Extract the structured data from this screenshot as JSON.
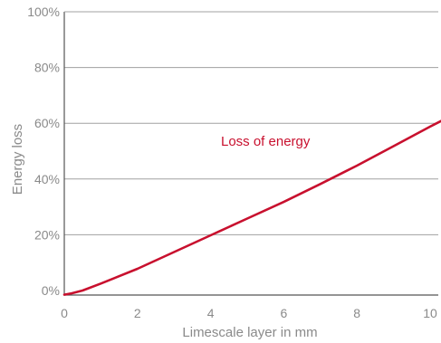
{
  "chart_data": {
    "type": "line",
    "title": "",
    "xlabel": "Limescale layer in mm",
    "ylabel": "Energy loss",
    "xlim": [
      0,
      10.3
    ],
    "ylim": [
      0,
      100
    ],
    "x_ticks": [
      0,
      2,
      4,
      6,
      8,
      10
    ],
    "x_tick_labels": [
      "0",
      "2",
      "4",
      "6",
      "8",
      "10"
    ],
    "y_ticks": [
      0,
      20,
      40,
      60,
      80,
      100
    ],
    "y_tick_labels": [
      "0%",
      "20%",
      "40%",
      "60%",
      "80%",
      "100%"
    ],
    "grid": "horizontal",
    "series": [
      {
        "color": "#c8102e",
        "x": [
          0,
          0.2,
          0.5,
          1,
          2,
          3,
          4,
          5,
          6,
          7,
          8,
          9,
          10,
          10.3
        ],
        "y": [
          -1.5,
          -1,
          0,
          2.5,
          7.8,
          13.8,
          19.8,
          25.8,
          31.8,
          38.2,
          44.8,
          51.8,
          58.8,
          60.8
        ]
      }
    ],
    "annotations": [
      {
        "text": "Loss of energy",
        "x": 5.5,
        "y": 52,
        "color": "#c8102e"
      }
    ],
    "colors": {
      "line": "#c8102e",
      "grid": "#a0a0a0",
      "axis": "#555555",
      "text": "#8a8a8a"
    }
  }
}
